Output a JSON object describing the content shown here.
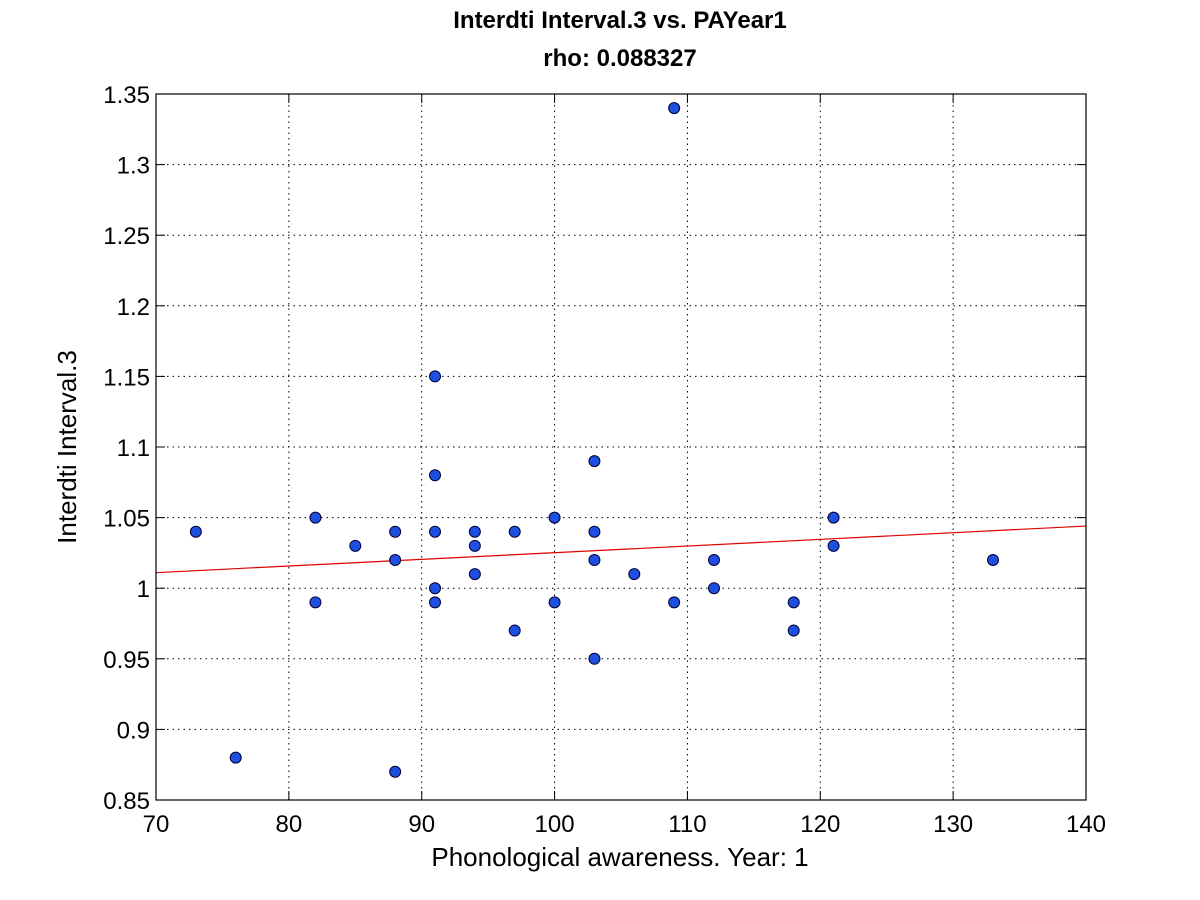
{
  "chart_data": {
    "type": "scatter",
    "title": "Interdti Interval.3 vs. PAYear1",
    "subtitle": "rho: 0.088327",
    "xlabel": "Phonological awareness. Year: 1",
    "ylabel": "Interdti Interval.3",
    "xlim": [
      70,
      140
    ],
    "ylim": [
      0.85,
      1.35
    ],
    "xticks": [
      70,
      80,
      90,
      100,
      110,
      120,
      130,
      140
    ],
    "yticks": [
      0.85,
      0.9,
      0.95,
      1,
      1.05,
      1.1,
      1.15,
      1.2,
      1.25,
      1.3,
      1.35
    ],
    "xtick_labels": [
      "70",
      "80",
      "90",
      "100",
      "110",
      "120",
      "130",
      "140"
    ],
    "ytick_labels": [
      "0.85",
      "0.9",
      "0.95",
      "1",
      "1.05",
      "1.1",
      "1.15",
      "1.2",
      "1.25",
      "1.3",
      "1.35"
    ],
    "grid": true,
    "legend": "none",
    "points": [
      {
        "x": 73,
        "y": 1.04
      },
      {
        "x": 76,
        "y": 0.88
      },
      {
        "x": 82,
        "y": 1.05
      },
      {
        "x": 82,
        "y": 0.99
      },
      {
        "x": 85,
        "y": 1.03
      },
      {
        "x": 88,
        "y": 1.04
      },
      {
        "x": 88,
        "y": 1.02
      },
      {
        "x": 88,
        "y": 0.87
      },
      {
        "x": 91,
        "y": 1.15
      },
      {
        "x": 91,
        "y": 1.08
      },
      {
        "x": 91,
        "y": 1.04
      },
      {
        "x": 91,
        "y": 1.0
      },
      {
        "x": 91,
        "y": 0.99
      },
      {
        "x": 94,
        "y": 1.04
      },
      {
        "x": 94,
        "y": 1.03
      },
      {
        "x": 94,
        "y": 1.01
      },
      {
        "x": 97,
        "y": 1.04
      },
      {
        "x": 97,
        "y": 0.97
      },
      {
        "x": 100,
        "y": 1.05
      },
      {
        "x": 100,
        "y": 0.99
      },
      {
        "x": 103,
        "y": 1.09
      },
      {
        "x": 103,
        "y": 1.04
      },
      {
        "x": 103,
        "y": 1.02
      },
      {
        "x": 103,
        "y": 0.95
      },
      {
        "x": 106,
        "y": 1.01
      },
      {
        "x": 109,
        "y": 1.34
      },
      {
        "x": 109,
        "y": 0.99
      },
      {
        "x": 112,
        "y": 1.02
      },
      {
        "x": 112,
        "y": 1.0
      },
      {
        "x": 118,
        "y": 0.99
      },
      {
        "x": 118,
        "y": 0.97
      },
      {
        "x": 121,
        "y": 1.05
      },
      {
        "x": 121,
        "y": 1.03
      },
      {
        "x": 133,
        "y": 1.02
      }
    ],
    "fit_line": {
      "x": [
        70,
        140
      ],
      "y": [
        1.011,
        1.044
      ]
    },
    "colors": {
      "marker_fill": "#1f4fe0",
      "marker_edge": "#000033",
      "fit_line": "#e00000",
      "grid": "#000000",
      "axes": "#000000"
    }
  }
}
